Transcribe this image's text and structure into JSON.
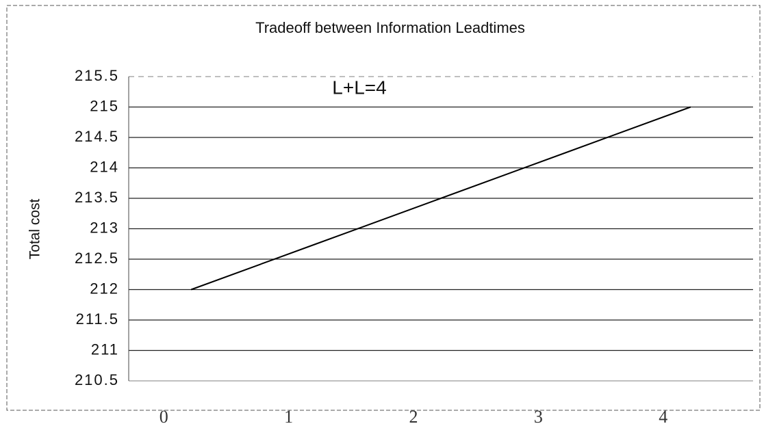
{
  "chart_data": {
    "type": "line",
    "title": "Tradeoff between Information Leadtimes",
    "ylabel": "Total cost",
    "annotation": "L+L=4",
    "categories": [
      "0",
      "1",
      "2",
      "3",
      "4"
    ],
    "series": [
      {
        "name": "Total cost",
        "color": "#000000",
        "values": [
          212,
          212.75,
          213.5,
          214.25,
          215
        ]
      }
    ],
    "ylim": [
      210.5,
      215.5
    ],
    "yticks": [
      210.5,
      211,
      211.5,
      212,
      212.5,
      213,
      213.5,
      214,
      214.5,
      215,
      215.5
    ],
    "grid": true
  }
}
